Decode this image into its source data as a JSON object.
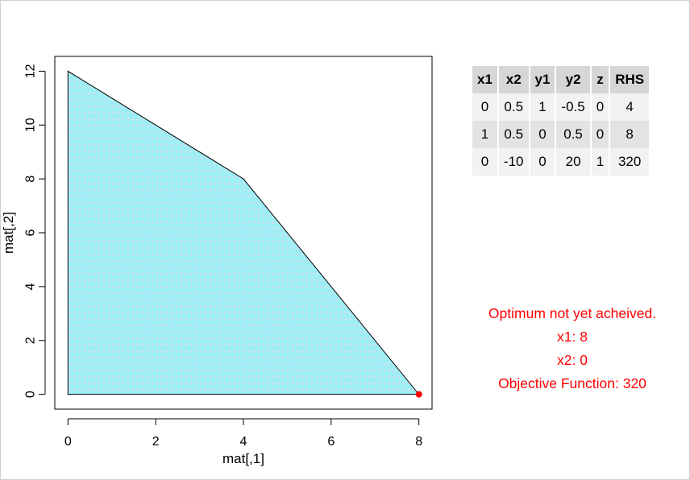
{
  "chart_data": {
    "type": "polygon-region",
    "xlabel": "mat[,1]",
    "ylabel": "mat[,2]",
    "xlim": [
      -0.3,
      8.3
    ],
    "ylim": [
      -0.55,
      12.55
    ],
    "x_ticks": [
      0,
      2,
      4,
      6,
      8
    ],
    "y_ticks": [
      0,
      2,
      4,
      6,
      8,
      10,
      12
    ],
    "feasible_region": [
      {
        "x": 0,
        "y": 0
      },
      {
        "x": 0,
        "y": 12
      },
      {
        "x": 4,
        "y": 8
      },
      {
        "x": 8,
        "y": 0
      }
    ],
    "fill_color": "#9eeef5",
    "hatch_color": "#c5e3ee",
    "edge_color": "#000000",
    "current_point": {
      "x": 8,
      "y": 0,
      "color": "#ff0000"
    }
  },
  "tableau": {
    "columns": [
      "x1",
      "x2",
      "y1",
      "y2",
      "z",
      "RHS"
    ],
    "rows": [
      [
        "0",
        "0.5",
        "1",
        "-0.5",
        "0",
        "4"
      ],
      [
        "1",
        "0.5",
        "0",
        "0.5",
        "0",
        "8"
      ],
      [
        "0",
        "-10",
        "0",
        "20",
        "1",
        "320"
      ]
    ]
  },
  "status": {
    "message": "Optimum not yet acheived.",
    "x1_line": "x1:  8",
    "x2_line": "x2:  0",
    "objective_line": "Objective Function:  320",
    "color": "#ff0000"
  }
}
